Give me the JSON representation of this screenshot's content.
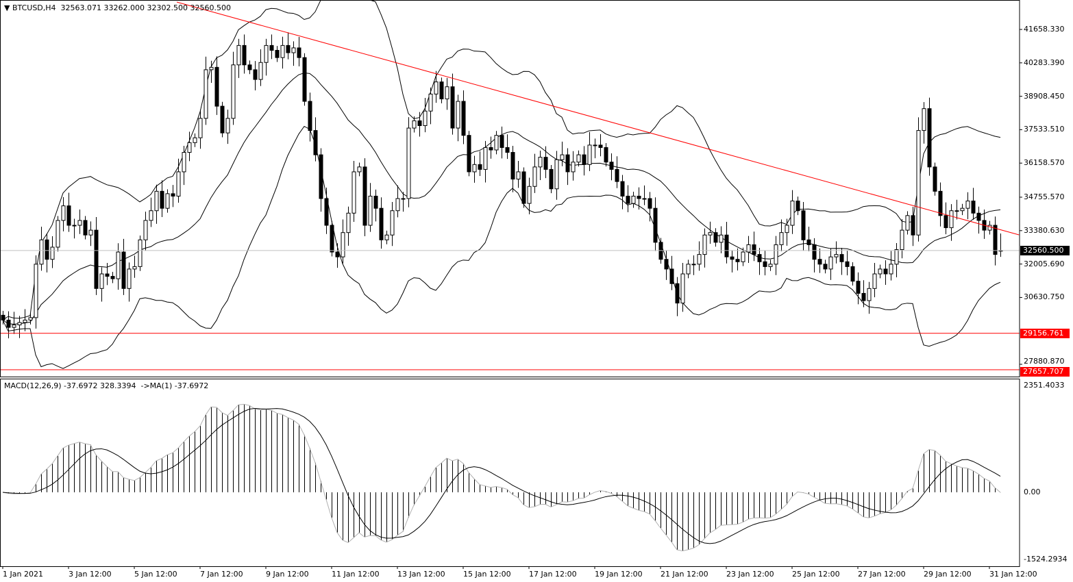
{
  "header": {
    "symbol": "BTCUSD,H4",
    "ohlc": "32563.071 33262.000 32302.500 32560.500"
  },
  "macd_header": "MACD(12,26,9) -37.6972 328.3394  ->MA(1) -37.6972",
  "colors": {
    "background": "#ffffff",
    "candle_bull": "#ffffff",
    "candle_bear": "#000000",
    "levels": "#ff0000",
    "bid_line": "#c0c0c0",
    "trendline": "#ff0000"
  },
  "chart_data": [
    {
      "type": "candlestick",
      "symbol": "BTCUSD",
      "timeframe": "H4",
      "ylim": [
        27100,
        42800
      ],
      "price_ticks": [
        "41658.330",
        "40283.390",
        "38908.450",
        "37533.510",
        "36158.570",
        "34755.570",
        "33380.630",
        "32005.690",
        "30630.750",
        "27880.870"
      ],
      "price_tick_values": [
        41658.33,
        40283.39,
        38908.45,
        37533.51,
        36158.57,
        34755.57,
        33380.63,
        32005.69,
        30630.75,
        27880.87
      ],
      "time_labels": [
        "1 Jan 2021",
        "3 Jan 12:00",
        "5 Jan 12:00",
        "7 Jan 12:00",
        "9 Jan 12:00",
        "11 Jan 12:00",
        "13 Jan 12:00",
        "15 Jan 12:00",
        "17 Jan 12:00",
        "19 Jan 12:00",
        "21 Jan 12:00",
        "23 Jan 12:00",
        "25 Jan 12:00",
        "27 Jan 12:00",
        "29 Jan 12:00",
        "31 Jan 12:00"
      ],
      "time_label_every_bars": 12,
      "first_open": 29900,
      "closes": [
        29700,
        29400,
        29500,
        29600,
        29700,
        29800,
        32000,
        33000,
        32200,
        32700,
        33800,
        34400,
        33600,
        33600,
        33800,
        33200,
        33400,
        31000,
        31600,
        31500,
        31400,
        32500,
        31000,
        31800,
        31900,
        33000,
        33800,
        34200,
        35000,
        34300,
        34900,
        34800,
        35800,
        36600,
        37000,
        37200,
        38000,
        40000,
        40100,
        38500,
        37400,
        38000,
        40200,
        41000,
        40200,
        40000,
        39600,
        40300,
        41000,
        40800,
        40500,
        41000,
        40700,
        40900,
        40500,
        38700,
        37500,
        36500,
        34700,
        33600,
        32500,
        32300,
        33300,
        34100,
        35800,
        36000,
        33600,
        34800,
        34300,
        33000,
        33200,
        34200,
        34700,
        34700,
        37600,
        37900,
        37700,
        38300,
        39000,
        39500,
        38800,
        39300,
        37600,
        38700,
        37300,
        35800,
        36100,
        35900,
        36800,
        36700,
        37300,
        36800,
        36600,
        35500,
        35800,
        34500,
        35200,
        36000,
        36400,
        35900,
        35100,
        36300,
        36500,
        35800,
        36200,
        36500,
        36100,
        36900,
        36900,
        36800,
        36200,
        35900,
        35400,
        34800,
        34500,
        34800,
        34700,
        34700,
        34300,
        32900,
        32200,
        31800,
        31200,
        30400,
        31600,
        32000,
        32000,
        32400,
        33200,
        33300,
        32900,
        33200,
        32300,
        32200,
        32100,
        32500,
        32800,
        32400,
        32100,
        31900,
        32000,
        32800,
        33300,
        33600,
        34600,
        34200,
        33000,
        32800,
        32200,
        32000,
        31800,
        32300,
        32400,
        32100,
        31900,
        31300,
        30800,
        30500,
        31000,
        31600,
        31800,
        31600,
        32000,
        32600,
        33400,
        34000,
        33200,
        37500,
        38400,
        36000,
        35000,
        34000,
        33500,
        34200,
        34200,
        34300,
        34600,
        34100,
        33800,
        33400,
        33600,
        32400,
        32560.5
      ],
      "last_candle": {
        "open": 32563.071,
        "high": 33262.0,
        "low": 32302.5,
        "close": 32560.5
      },
      "indicators": {
        "bollinger_bands": {
          "period": 20,
          "deviation": 2
        }
      },
      "horizontal_lines": [
        {
          "price": 29156.761,
          "label": "29156.761",
          "color": "#ff0000"
        },
        {
          "price": 27657.707,
          "label": "27657.707",
          "color": "#ff0000"
        }
      ],
      "bid_line": {
        "price": 32560.5,
        "label": "32560.500"
      },
      "trendline": {
        "from": {
          "bar": 31.75,
          "price": 42785
        },
        "to": {
          "bar": 185.4,
          "price": 33206
        },
        "color": "#ff0000"
      }
    },
    {
      "type": "histogram+line",
      "indicator": "MACD(12,26,9)",
      "ylim": [
        -1524.2934,
        2351.4033
      ],
      "ticks": [
        "2351.4033",
        "0.00",
        "-1524.2934"
      ],
      "tick_values": [
        2351.4033,
        0,
        -1524.2934
      ],
      "fast": 12,
      "slow": 26,
      "signal": 9,
      "values_last": {
        "macd": -37.6972,
        "signal": 328.3394
      }
    }
  ]
}
